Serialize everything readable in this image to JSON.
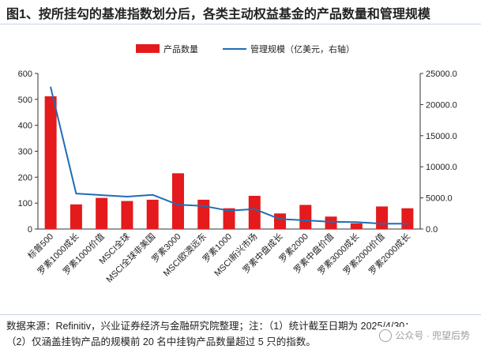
{
  "header": {
    "title": "图1、按所挂勾的基准指数划分后，各类主动权益基金的产品数量和管理规模"
  },
  "footer": {
    "source_line1": "数据来源：Refinitiv，兴业证券经济与金融研究院整理；注：（1）统计截至日期为 2025/4/30；",
    "source_line2": "（2）仅涵盖挂钩产品的规模前 20 名中挂钩产品数量超过 5 只的指数。",
    "watermark": "公众号 · 兜望后势"
  },
  "colors": {
    "bar": "#e41a1c",
    "line": "#1f6db4",
    "accent": "#c9d5e6"
  },
  "chart_data": {
    "type": "bar",
    "categories": [
      "标普500",
      "罗素1000成长",
      "罗素1000价值",
      "MSCI全球",
      "MSCI全球非美国",
      "罗素3000",
      "MSCI欧澳远东",
      "罗素1000",
      "MSCI新兴市场",
      "罗素中盘成长",
      "罗素2000",
      "罗素中盘价值",
      "罗素3000成长",
      "罗素2000价值",
      "罗素2000成长"
    ],
    "series": [
      {
        "name": "产品数量",
        "type": "bar",
        "axis": "left",
        "values": [
          512,
          95,
          120,
          108,
          113,
          215,
          113,
          80,
          128,
          60,
          93,
          48,
          22,
          87,
          80
        ]
      },
      {
        "name": "管理规模（亿美元，右轴）",
        "type": "line",
        "axis": "right",
        "values": [
          22800,
          5700,
          5450,
          5200,
          5500,
          3900,
          3700,
          2950,
          3200,
          1600,
          1400,
          1150,
          1100,
          850,
          850
        ]
      }
    ],
    "y_left": {
      "range": [
        0,
        600
      ],
      "ticks": [
        "0",
        "100",
        "200",
        "300",
        "400",
        "500",
        "600"
      ]
    },
    "y_right": {
      "range": [
        0,
        25000
      ],
      "ticks": [
        "0.0",
        "5000.0",
        "10000.0",
        "15000.0",
        "20000.0",
        "25000.0"
      ]
    },
    "legend_position": "top",
    "grid": false
  }
}
